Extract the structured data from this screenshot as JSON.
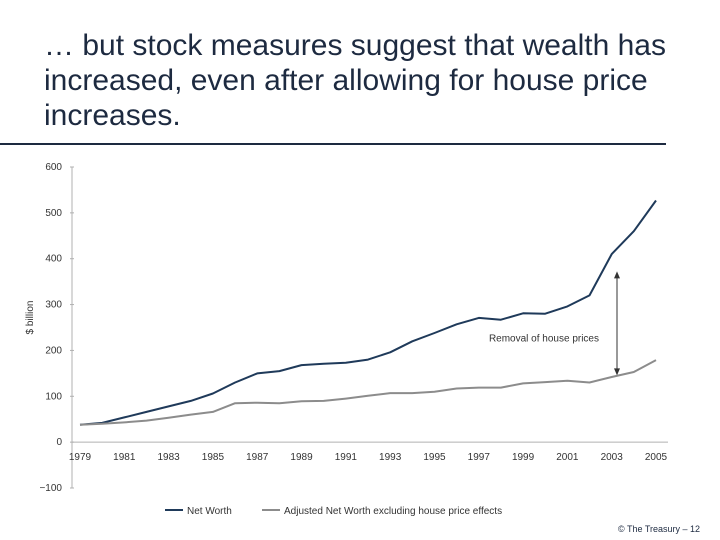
{
  "slide": {
    "title": "… but stock measures suggest that wealth has increased, even after allowing for house price increases.",
    "footer": "© The Treasury – 12"
  },
  "chart_data": {
    "type": "line",
    "ylabel": "$ billion",
    "xlabel": "",
    "ylim": [
      -100,
      600
    ],
    "yticks": [
      -100,
      0,
      100,
      200,
      300,
      400,
      500,
      600
    ],
    "xlim": [
      1979,
      2005
    ],
    "xticks": [
      1979,
      1981,
      1983,
      1985,
      1987,
      1989,
      1991,
      1993,
      1995,
      1997,
      1999,
      2001,
      2003,
      2005
    ],
    "grid": false,
    "legend": "bottom",
    "annotation": "Removal of house prices",
    "series": [
      {
        "name": "Net Worth",
        "color": "#1f3a5a",
        "x": [
          1979,
          1980,
          1981,
          1982,
          1983,
          1984,
          1985,
          1986,
          1987,
          1988,
          1989,
          1990,
          1991,
          1992,
          1993,
          1994,
          1995,
          1996,
          1997,
          1998,
          1999,
          2000,
          2001,
          2002,
          2003,
          2004,
          2005
        ],
        "values": [
          38,
          42,
          54,
          66,
          78,
          90,
          106,
          130,
          150,
          155,
          168,
          171,
          173,
          180,
          196,
          220,
          238,
          257,
          271,
          267,
          281,
          280,
          296,
          320,
          410,
          460,
          527
        ]
      },
      {
        "name": "Adjusted Net Worth excluding house price effects",
        "color": "#8c8c8c",
        "x": [
          1979,
          1980,
          1981,
          1982,
          1983,
          1984,
          1985,
          1986,
          1987,
          1988,
          1989,
          1990,
          1991,
          1992,
          1993,
          1994,
          1995,
          1996,
          1997,
          1998,
          1999,
          2000,
          2001,
          2002,
          2003,
          2004,
          2005
        ],
        "values": [
          38,
          40,
          43,
          47,
          53,
          60,
          66,
          85,
          86,
          85,
          89,
          90,
          95,
          101,
          107,
          107,
          110,
          117,
          119,
          119,
          128,
          131,
          134,
          130,
          142,
          153,
          179
        ]
      }
    ]
  }
}
